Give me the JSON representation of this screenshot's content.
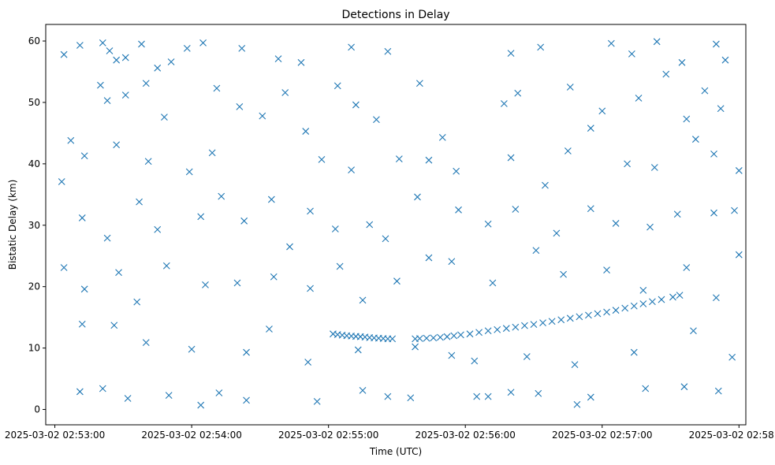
{
  "chart_data": {
    "type": "scatter",
    "title": "Detections in Delay",
    "xlabel": "Time (UTC)",
    "ylabel": "Bistatic Delay (km)",
    "x_is_datetime": true,
    "xlim": [
      "2025-03-02 02:52:56",
      "2025-03-02 02:58:03"
    ],
    "ylim": [
      -2.5,
      62.7
    ],
    "xticks": [
      "2025-03-02 02:53:00",
      "2025-03-02 02:54:00",
      "2025-03-02 02:55:00",
      "2025-03-02 02:56:00",
      "2025-03-02 02:57:00",
      "2025-03-02 02:58:00"
    ],
    "yticks": [
      0,
      10,
      20,
      30,
      40,
      50,
      60
    ],
    "marker": "x",
    "color": "#1f77b4",
    "grid": false,
    "legend": false,
    "series": [
      {
        "name": "",
        "points": [
          [
            "2025-03-02 02:53:04",
            57.8
          ],
          [
            "2025-03-02 02:53:11",
            59.3
          ],
          [
            "2025-03-02 02:53:21",
            59.7
          ],
          [
            "2025-03-02 02:53:24",
            58.4
          ],
          [
            "2025-03-02 02:53:27",
            56.9
          ],
          [
            "2025-03-02 02:53:31",
            57.3
          ],
          [
            "2025-03-02 02:53:38",
            59.5
          ],
          [
            "2025-03-02 02:53:45",
            55.6
          ],
          [
            "2025-03-02 02:53:51",
            56.6
          ],
          [
            "2025-03-02 02:53:58",
            58.8
          ],
          [
            "2025-03-02 02:54:05",
            59.7
          ],
          [
            "2025-03-02 02:54:22",
            58.8
          ],
          [
            "2025-03-02 02:54:38",
            57.1
          ],
          [
            "2025-03-02 02:54:48",
            56.5
          ],
          [
            "2025-03-02 02:55:10",
            59.0
          ],
          [
            "2025-03-02 02:55:26",
            58.3
          ],
          [
            "2025-03-02 02:56:20",
            58.0
          ],
          [
            "2025-03-02 02:56:33",
            59.0
          ],
          [
            "2025-03-02 02:57:04",
            59.6
          ],
          [
            "2025-03-02 02:57:13",
            57.9
          ],
          [
            "2025-03-02 02:57:24",
            59.9
          ],
          [
            "2025-03-02 02:57:35",
            56.5
          ],
          [
            "2025-03-02 02:57:50",
            59.5
          ],
          [
            "2025-03-02 02:57:54",
            56.9
          ],
          [
            "2025-03-02 02:53:20",
            52.8
          ],
          [
            "2025-03-02 02:53:23",
            50.3
          ],
          [
            "2025-03-02 02:53:31",
            51.2
          ],
          [
            "2025-03-02 02:53:40",
            53.1
          ],
          [
            "2025-03-02 02:53:48",
            47.6
          ],
          [
            "2025-03-02 02:54:11",
            52.3
          ],
          [
            "2025-03-02 02:54:21",
            49.3
          ],
          [
            "2025-03-02 02:54:31",
            47.8
          ],
          [
            "2025-03-02 02:54:41",
            51.6
          ],
          [
            "2025-03-02 02:54:50",
            45.3
          ],
          [
            "2025-03-02 02:55:04",
            52.7
          ],
          [
            "2025-03-02 02:55:12",
            49.6
          ],
          [
            "2025-03-02 02:55:21",
            47.2
          ],
          [
            "2025-03-02 02:55:40",
            53.1
          ],
          [
            "2025-03-02 02:55:50",
            44.3
          ],
          [
            "2025-03-02 02:56:17",
            49.8
          ],
          [
            "2025-03-02 02:56:23",
            51.5
          ],
          [
            "2025-03-02 02:56:46",
            52.5
          ],
          [
            "2025-03-02 02:56:55",
            45.8
          ],
          [
            "2025-03-02 02:57:00",
            48.6
          ],
          [
            "2025-03-02 02:57:16",
            50.7
          ],
          [
            "2025-03-02 02:57:28",
            54.6
          ],
          [
            "2025-03-02 02:57:37",
            47.3
          ],
          [
            "2025-03-02 02:57:45",
            51.9
          ],
          [
            "2025-03-02 02:57:52",
            49.0
          ],
          [
            "2025-03-02 02:53:07",
            43.8
          ],
          [
            "2025-03-02 02:53:13",
            41.3
          ],
          [
            "2025-03-02 02:53:27",
            43.1
          ],
          [
            "2025-03-02 02:53:41",
            40.4
          ],
          [
            "2025-03-02 02:53:59",
            38.7
          ],
          [
            "2025-03-02 02:54:09",
            41.8
          ],
          [
            "2025-03-02 02:54:35",
            34.2
          ],
          [
            "2025-03-02 02:54:57",
            40.7
          ],
          [
            "2025-03-02 02:55:10",
            39.0
          ],
          [
            "2025-03-02 02:55:31",
            40.8
          ],
          [
            "2025-03-02 02:55:44",
            40.6
          ],
          [
            "2025-03-02 02:55:56",
            38.8
          ],
          [
            "2025-03-02 02:56:20",
            41.0
          ],
          [
            "2025-03-02 02:56:35",
            36.5
          ],
          [
            "2025-03-02 02:56:45",
            42.1
          ],
          [
            "2025-03-02 02:57:11",
            40.0
          ],
          [
            "2025-03-02 02:57:23",
            39.4
          ],
          [
            "2025-03-02 02:57:41",
            44.0
          ],
          [
            "2025-03-02 02:57:49",
            41.6
          ],
          [
            "2025-03-02 02:58:00",
            38.9
          ],
          [
            "2025-03-02 02:53:03",
            37.1
          ],
          [
            "2025-03-02 02:53:12",
            31.2
          ],
          [
            "2025-03-02 02:53:23",
            27.9
          ],
          [
            "2025-03-02 02:53:37",
            33.8
          ],
          [
            "2025-03-02 02:53:45",
            29.3
          ],
          [
            "2025-03-02 02:54:04",
            31.4
          ],
          [
            "2025-03-02 02:54:13",
            34.7
          ],
          [
            "2025-03-02 02:54:23",
            30.7
          ],
          [
            "2025-03-02 02:54:43",
            26.5
          ],
          [
            "2025-03-02 02:54:52",
            32.3
          ],
          [
            "2025-03-02 02:55:03",
            29.4
          ],
          [
            "2025-03-02 02:55:18",
            30.1
          ],
          [
            "2025-03-02 02:55:25",
            27.8
          ],
          [
            "2025-03-02 02:55:39",
            34.6
          ],
          [
            "2025-03-02 02:55:57",
            32.5
          ],
          [
            "2025-03-02 02:56:10",
            30.2
          ],
          [
            "2025-03-02 02:56:22",
            32.6
          ],
          [
            "2025-03-02 02:56:40",
            28.7
          ],
          [
            "2025-03-02 02:56:55",
            32.7
          ],
          [
            "2025-03-02 02:57:06",
            30.3
          ],
          [
            "2025-03-02 02:57:21",
            29.7
          ],
          [
            "2025-03-02 02:57:33",
            31.8
          ],
          [
            "2025-03-02 02:57:49",
            32.0
          ],
          [
            "2025-03-02 02:57:58",
            32.4
          ],
          [
            "2025-03-02 02:53:04",
            23.1
          ],
          [
            "2025-03-02 02:53:13",
            19.6
          ],
          [
            "2025-03-02 02:53:28",
            22.3
          ],
          [
            "2025-03-02 02:53:36",
            17.5
          ],
          [
            "2025-03-02 02:53:49",
            23.4
          ],
          [
            "2025-03-02 02:54:06",
            20.3
          ],
          [
            "2025-03-02 02:54:20",
            20.6
          ],
          [
            "2025-03-02 02:54:36",
            21.6
          ],
          [
            "2025-03-02 02:54:52",
            19.7
          ],
          [
            "2025-03-02 02:55:05",
            23.3
          ],
          [
            "2025-03-02 02:55:15",
            17.8
          ],
          [
            "2025-03-02 02:55:30",
            20.9
          ],
          [
            "2025-03-02 02:55:44",
            24.7
          ],
          [
            "2025-03-02 02:55:54",
            24.1
          ],
          [
            "2025-03-02 02:56:12",
            20.6
          ],
          [
            "2025-03-02 02:56:31",
            25.9
          ],
          [
            "2025-03-02 02:56:43",
            22.0
          ],
          [
            "2025-03-02 02:57:02",
            22.7
          ],
          [
            "2025-03-02 02:57:18",
            19.4
          ],
          [
            "2025-03-02 02:57:37",
            23.1
          ],
          [
            "2025-03-02 02:57:50",
            18.2
          ],
          [
            "2025-03-02 02:58:00",
            25.2
          ],
          [
            "2025-03-02 02:53:12",
            13.9
          ],
          [
            "2025-03-02 02:53:26",
            13.7
          ],
          [
            "2025-03-02 02:53:40",
            10.9
          ],
          [
            "2025-03-02 02:54:00",
            9.8
          ],
          [
            "2025-03-02 02:54:24",
            9.3
          ],
          [
            "2025-03-02 02:54:34",
            13.1
          ],
          [
            "2025-03-02 02:54:51",
            7.7
          ],
          [
            "2025-03-02 02:55:13",
            9.7
          ],
          [
            "2025-03-02 02:55:38",
            10.2
          ],
          [
            "2025-03-02 02:55:54",
            8.8
          ],
          [
            "2025-03-02 02:56:04",
            7.9
          ],
          [
            "2025-03-02 02:56:27",
            8.6
          ],
          [
            "2025-03-02 02:56:48",
            7.3
          ],
          [
            "2025-03-02 02:57:14",
            9.3
          ],
          [
            "2025-03-02 02:57:40",
            12.8
          ],
          [
            "2025-03-02 02:57:57",
            8.5
          ],
          [
            "2025-03-02 02:53:11",
            2.9
          ],
          [
            "2025-03-02 02:53:21",
            3.4
          ],
          [
            "2025-03-02 02:53:32",
            1.8
          ],
          [
            "2025-03-02 02:53:50",
            2.3
          ],
          [
            "2025-03-02 02:54:04",
            0.7
          ],
          [
            "2025-03-02 02:54:12",
            2.7
          ],
          [
            "2025-03-02 02:54:24",
            1.5
          ],
          [
            "2025-03-02 02:54:55",
            1.3
          ],
          [
            "2025-03-02 02:55:15",
            3.1
          ],
          [
            "2025-03-02 02:55:26",
            2.1
          ],
          [
            "2025-03-02 02:55:36",
            1.9
          ],
          [
            "2025-03-02 02:56:05",
            2.1
          ],
          [
            "2025-03-02 02:56:10",
            2.1
          ],
          [
            "2025-03-02 02:56:20",
            2.8
          ],
          [
            "2025-03-02 02:56:32",
            2.6
          ],
          [
            "2025-03-02 02:56:49",
            0.8
          ],
          [
            "2025-03-02 02:56:55",
            2.0
          ],
          [
            "2025-03-02 02:57:19",
            3.4
          ],
          [
            "2025-03-02 02:57:36",
            3.7
          ],
          [
            "2025-03-02 02:57:51",
            3.0
          ],
          [
            "2025-03-02 02:55:02",
            12.3
          ],
          [
            "2025-03-02 02:55:04",
            12.2
          ],
          [
            "2025-03-02 02:55:06",
            12.1
          ],
          [
            "2025-03-02 02:55:08",
            12.0
          ],
          [
            "2025-03-02 02:55:10",
            11.95
          ],
          [
            "2025-03-02 02:55:12",
            11.9
          ],
          [
            "2025-03-02 02:55:14",
            11.85
          ],
          [
            "2025-03-02 02:55:16",
            11.8
          ],
          [
            "2025-03-02 02:55:18",
            11.7
          ],
          [
            "2025-03-02 02:55:20",
            11.65
          ],
          [
            "2025-03-02 02:55:22",
            11.6
          ],
          [
            "2025-03-02 02:55:24",
            11.55
          ],
          [
            "2025-03-02 02:55:26",
            11.5
          ],
          [
            "2025-03-02 02:55:28",
            11.5
          ],
          [
            "2025-03-02 02:55:38",
            11.5
          ],
          [
            "2025-03-02 02:55:40",
            11.55
          ],
          [
            "2025-03-02 02:55:43",
            11.6
          ],
          [
            "2025-03-02 02:55:46",
            11.65
          ],
          [
            "2025-03-02 02:55:49",
            11.75
          ],
          [
            "2025-03-02 02:55:52",
            11.85
          ],
          [
            "2025-03-02 02:55:55",
            12.0
          ],
          [
            "2025-03-02 02:55:58",
            12.15
          ],
          [
            "2025-03-02 02:56:02",
            12.3
          ],
          [
            "2025-03-02 02:56:06",
            12.55
          ],
          [
            "2025-03-02 02:56:10",
            12.8
          ],
          [
            "2025-03-02 02:56:14",
            13.0
          ],
          [
            "2025-03-02 02:56:18",
            13.2
          ],
          [
            "2025-03-02 02:56:22",
            13.4
          ],
          [
            "2025-03-02 02:56:26",
            13.65
          ],
          [
            "2025-03-02 02:56:30",
            13.85
          ],
          [
            "2025-03-02 02:56:34",
            14.1
          ],
          [
            "2025-03-02 02:56:38",
            14.35
          ],
          [
            "2025-03-02 02:56:42",
            14.6
          ],
          [
            "2025-03-02 02:56:46",
            14.85
          ],
          [
            "2025-03-02 02:56:50",
            15.1
          ],
          [
            "2025-03-02 02:56:54",
            15.35
          ],
          [
            "2025-03-02 02:56:58",
            15.6
          ],
          [
            "2025-03-02 02:57:02",
            15.85
          ],
          [
            "2025-03-02 02:57:06",
            16.15
          ],
          [
            "2025-03-02 02:57:10",
            16.5
          ],
          [
            "2025-03-02 02:57:14",
            16.85
          ],
          [
            "2025-03-02 02:57:18",
            17.2
          ],
          [
            "2025-03-02 02:57:22",
            17.55
          ],
          [
            "2025-03-02 02:57:26",
            17.9
          ],
          [
            "2025-03-02 02:57:31",
            18.3
          ],
          [
            "2025-03-02 02:57:34",
            18.6
          ]
        ]
      }
    ]
  }
}
